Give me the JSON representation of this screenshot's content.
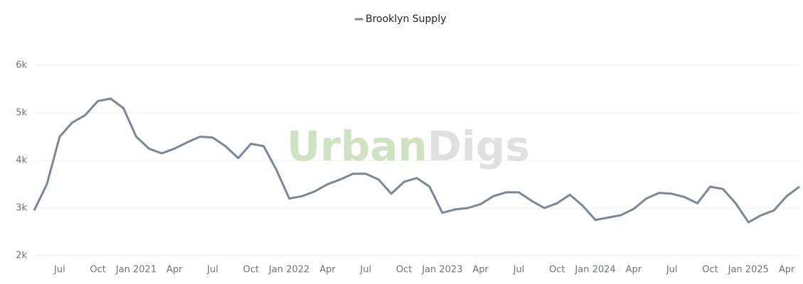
{
  "chart_data": {
    "type": "line",
    "watermark": [
      "Urban",
      "Digs"
    ],
    "x": [
      "2020-05",
      "2020-06",
      "2020-07",
      "2020-08",
      "2020-09",
      "2020-10",
      "2020-11",
      "2020-12",
      "2021-01",
      "2021-02",
      "2021-03",
      "2021-04",
      "2021-05",
      "2021-06",
      "2021-07",
      "2021-08",
      "2021-09",
      "2021-10",
      "2021-11",
      "2021-12",
      "2022-01",
      "2022-02",
      "2022-03",
      "2022-04",
      "2022-05",
      "2022-06",
      "2022-07",
      "2022-08",
      "2022-09",
      "2022-10",
      "2022-11",
      "2022-12",
      "2023-01",
      "2023-02",
      "2023-03",
      "2023-04",
      "2023-05",
      "2023-06",
      "2023-07",
      "2023-08",
      "2023-09",
      "2023-10",
      "2023-11",
      "2023-12",
      "2024-01",
      "2024-02",
      "2024-03",
      "2024-04",
      "2024-05",
      "2024-06",
      "2024-07",
      "2024-08",
      "2024-09",
      "2024-10",
      "2024-11",
      "2024-12",
      "2025-01",
      "2025-02",
      "2025-03",
      "2025-04",
      "2025-05"
    ],
    "series": [
      {
        "name": "Brooklyn Supply",
        "color": "#76889a",
        "values": [
          2950,
          3500,
          4500,
          4800,
          4950,
          5250,
          5300,
          5100,
          4500,
          4250,
          4150,
          4250,
          4380,
          4500,
          4480,
          4300,
          4050,
          4350,
          4300,
          3800,
          3200,
          3250,
          3350,
          3500,
          3600,
          3720,
          3720,
          3600,
          3300,
          3550,
          3630,
          3450,
          2900,
          2970,
          3000,
          3080,
          3250,
          3330,
          3330,
          3150,
          3000,
          3100,
          3280,
          3050,
          2750,
          2800,
          2850,
          2980,
          3200,
          3320,
          3300,
          3230,
          3100,
          3450,
          3400,
          3100,
          2700,
          2850,
          2950,
          3250,
          3450
        ]
      }
    ],
    "xlim": [
      "2020-05",
      "2025-05"
    ],
    "xticks": [
      {
        "value": "2020-07",
        "label": "Jul"
      },
      {
        "value": "2020-10",
        "label": "Oct"
      },
      {
        "value": "2021-01",
        "label": "Jan 2021"
      },
      {
        "value": "2021-04",
        "label": "Apr"
      },
      {
        "value": "2021-07",
        "label": "Jul"
      },
      {
        "value": "2021-10",
        "label": "Oct"
      },
      {
        "value": "2022-01",
        "label": "Jan 2022"
      },
      {
        "value": "2022-04",
        "label": "Apr"
      },
      {
        "value": "2022-07",
        "label": "Jul"
      },
      {
        "value": "2022-10",
        "label": "Oct"
      },
      {
        "value": "2023-01",
        "label": "Jan 2023"
      },
      {
        "value": "2023-04",
        "label": "Apr"
      },
      {
        "value": "2023-07",
        "label": "Jul"
      },
      {
        "value": "2023-10",
        "label": "Oct"
      },
      {
        "value": "2024-01",
        "label": "Jan 2024"
      },
      {
        "value": "2024-04",
        "label": "Apr"
      },
      {
        "value": "2024-07",
        "label": "Jul"
      },
      {
        "value": "2024-10",
        "label": "Oct"
      },
      {
        "value": "2025-01",
        "label": "Jan 2025"
      },
      {
        "value": "2025-04",
        "label": "Apr"
      }
    ],
    "ylim": [
      2000,
      6000
    ],
    "yticks": [
      {
        "value": 2000,
        "label": "2k"
      },
      {
        "value": 3000,
        "label": "3k"
      },
      {
        "value": 4000,
        "label": "4k"
      },
      {
        "value": 5000,
        "label": "5k"
      },
      {
        "value": 6000,
        "label": "6k"
      }
    ],
    "grid": true,
    "legend": "top"
  }
}
